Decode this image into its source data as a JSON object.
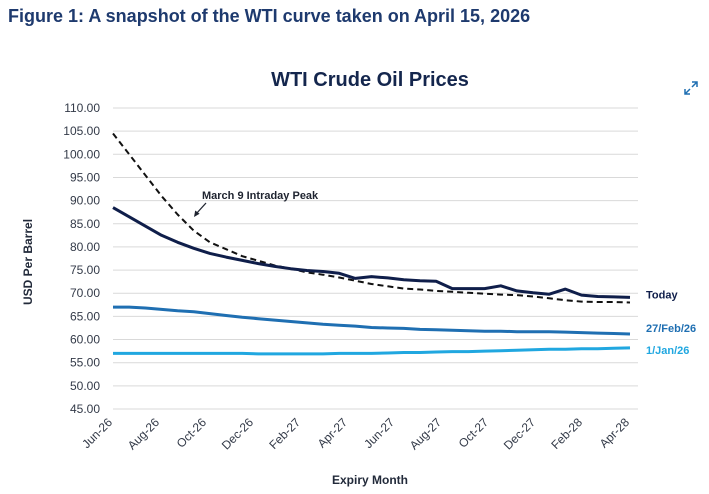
{
  "figure_title": "Figure 1: A snapshot of the WTI curve taken on April 15, 2026",
  "expand_icon": "expand-arrows-icon",
  "chart_data": {
    "type": "line",
    "title": "WTI Crude Oil Prices",
    "xlabel": "Expiry Month",
    "ylabel": "USD Per Barrel",
    "ylim": [
      45,
      110
    ],
    "yticks": [
      "45.00",
      "50.00",
      "55.00",
      "60.00",
      "65.00",
      "70.00",
      "75.00",
      "80.00",
      "85.00",
      "90.00",
      "95.00",
      "100.00",
      "105.00",
      "110.00"
    ],
    "x_tick_labels": [
      "Jun-26",
      "Aug-26",
      "Oct-26",
      "Dec-26",
      "Feb-27",
      "Apr-27",
      "Jun-27",
      "Aug-27",
      "Oct-27",
      "Dec-27",
      "Feb-28",
      "Apr-28"
    ],
    "grid": true,
    "annotation": "March 9 Intraday Peak",
    "series": [
      {
        "name": "March 9 Intraday Peak",
        "style": "dashed",
        "color": "#111111",
        "values": [
          104.5,
          100.0,
          95.5,
          91.0,
          87.0,
          83.5,
          81.0,
          79.5,
          78.0,
          77.0,
          76.0,
          75.3,
          74.5,
          74.0,
          73.4,
          72.7,
          72.0,
          71.5,
          71.0,
          70.8,
          70.5,
          70.3,
          70.1,
          69.9,
          69.7,
          69.6,
          69.3,
          68.9,
          68.5,
          68.2,
          68.1,
          68.1,
          68.0
        ]
      },
      {
        "name": "Today",
        "style": "solid",
        "color": "#0f1e4a",
        "values": [
          88.5,
          86.5,
          84.5,
          82.5,
          81.0,
          79.7,
          78.6,
          77.8,
          77.1,
          76.4,
          75.8,
          75.3,
          74.9,
          74.7,
          74.3,
          73.2,
          73.6,
          73.3,
          72.9,
          72.7,
          72.6,
          71.0,
          71.0,
          71.0,
          71.6,
          70.5,
          70.1,
          69.8,
          70.9,
          69.6,
          69.3,
          69.2,
          69.1
        ]
      },
      {
        "name": "27/Feb/26",
        "style": "solid",
        "color": "#1f6fb2",
        "values": [
          67.0,
          67.0,
          66.8,
          66.5,
          66.2,
          66.0,
          65.6,
          65.2,
          64.8,
          64.5,
          64.2,
          63.9,
          63.6,
          63.3,
          63.1,
          62.9,
          62.6,
          62.5,
          62.4,
          62.2,
          62.1,
          62.0,
          61.9,
          61.8,
          61.8,
          61.7,
          61.7,
          61.7,
          61.6,
          61.5,
          61.4,
          61.3,
          61.2
        ]
      },
      {
        "name": "1/Jan/26",
        "style": "solid",
        "color": "#20a7e0",
        "values": [
          57.0,
          57.0,
          57.0,
          57.0,
          57.0,
          57.0,
          57.0,
          57.0,
          57.0,
          56.9,
          56.9,
          56.9,
          56.9,
          56.9,
          57.0,
          57.0,
          57.0,
          57.1,
          57.2,
          57.2,
          57.3,
          57.4,
          57.4,
          57.5,
          57.6,
          57.7,
          57.8,
          57.9,
          57.9,
          58.0,
          58.0,
          58.1,
          58.2
        ]
      }
    ],
    "series_labels": [
      "Today",
      "27/Feb/26",
      "1/Jan/26"
    ]
  }
}
